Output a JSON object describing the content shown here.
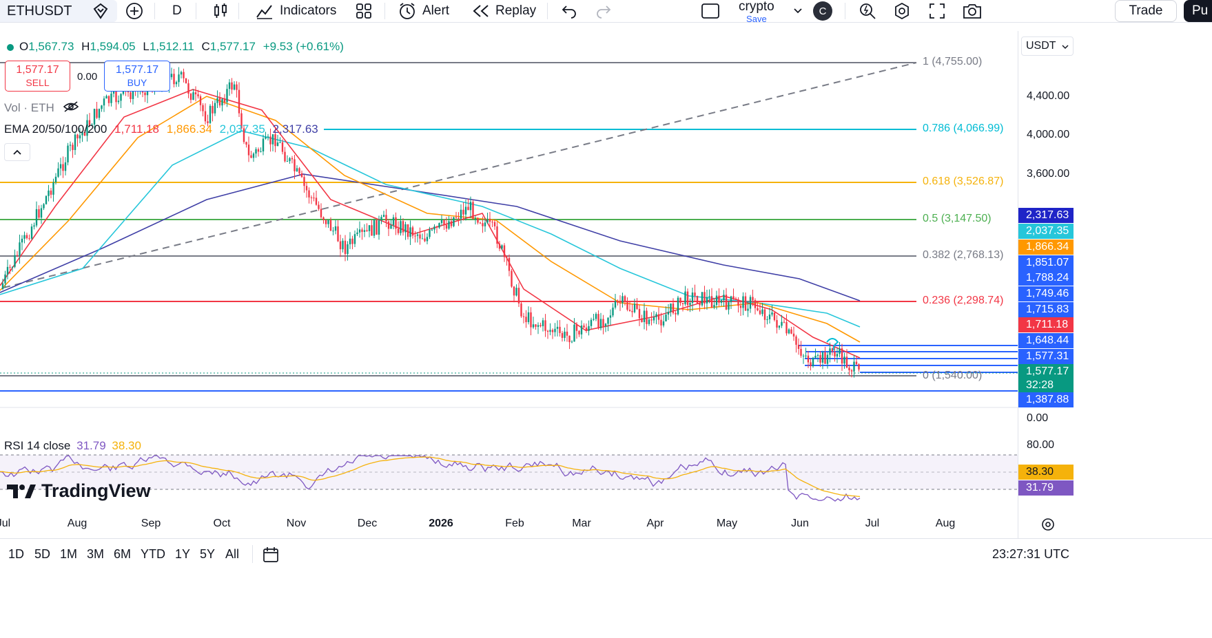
{
  "toolbar": {
    "symbol": "ETHUSDT",
    "interval": "D",
    "indicators_label": "Indicators",
    "alert_label": "Alert",
    "replay_label": "Replay",
    "layout_name": "crypto",
    "layout_save": "Save",
    "avatar_letter": "C",
    "trade_label": "Trade",
    "publish_label": "Pu"
  },
  "legend": {
    "o_key": "O",
    "o_val": "1,567.73",
    "h_key": "H",
    "h_val": "1,594.05",
    "l_key": "L",
    "l_val": "1,512.11",
    "c_key": "C",
    "c_val": "1,577.17",
    "change": "+9.53 (+0.61%)"
  },
  "trading": {
    "sell_price": "1,577.17",
    "sell_label": "SELL",
    "spread": "0.00",
    "buy_price": "1,577.17",
    "buy_label": "BUY"
  },
  "volume_label": "Vol · ETH",
  "ema": {
    "label": "EMA 20/50/100/200",
    "v20": "1,711.18",
    "v50": "1,866.34",
    "v100": "2,037.35",
    "v200": "2,317.63",
    "colors": [
      "#f23645",
      "#ff9800",
      "#26c6da",
      "#3f3fa6"
    ]
  },
  "rsi": {
    "label": "RSI 14 close",
    "value": "31.79",
    "ma": "38.30"
  },
  "fib_levels": [
    {
      "ratio": "1",
      "label": "1 (4,755.00)",
      "color": "#787b86"
    },
    {
      "ratio": "0.786",
      "label": "0.786 (4,066.99)",
      "color": "#00bcd4"
    },
    {
      "ratio": "0.618",
      "label": "0.618 (3,526.87)",
      "color": "#f5b20b"
    },
    {
      "ratio": "0.5",
      "label": "0.5 (3,147.50)",
      "color": "#4caf50"
    },
    {
      "ratio": "0.382",
      "label": "0.382 (2,768.13)",
      "color": "#787b86"
    },
    {
      "ratio": "0.236",
      "label": "0.236 (2,298.74)",
      "color": "#f23645"
    },
    {
      "ratio": "0",
      "label": "0 (1,540.00)",
      "color": "#787b86"
    }
  ],
  "price_scale": {
    "currency": "USDT",
    "ticks": [
      "4,400.00",
      "4,000.00",
      "3,600.00",
      "0.00",
      "80.00"
    ],
    "tags": [
      {
        "text": "2,317.63",
        "color": "#1f24c7"
      },
      {
        "text": "2,037.35",
        "color": "#26c6da"
      },
      {
        "text": "1,866.34",
        "color": "#ff9800"
      },
      {
        "text": "1,851.07",
        "color": "#2962ff"
      },
      {
        "text": "1,788.24",
        "color": "#2962ff"
      },
      {
        "text": "1,749.46",
        "color": "#2962ff"
      },
      {
        "text": "1,715.83",
        "color": "#2962ff"
      },
      {
        "text": "1,711.18",
        "color": "#f23645"
      },
      {
        "text": "1,648.44",
        "color": "#2962ff"
      },
      {
        "text": "1,577.31",
        "color": "#2962ff"
      },
      {
        "text": "1,577.17",
        "color": "#089981"
      },
      {
        "text": "32:28",
        "color": "#089981"
      },
      {
        "text": "1,387.88",
        "color": "#2962ff"
      },
      {
        "text": "38.30",
        "color": "#f5b20b"
      },
      {
        "text": "31.79",
        "color": "#7e57c2"
      }
    ]
  },
  "time_axis": [
    "Jul",
    "Aug",
    "Sep",
    "Oct",
    "Nov",
    "Dec",
    "2026",
    "Feb",
    "Mar",
    "Apr",
    "May",
    "Jun",
    "Jul",
    "Aug"
  ],
  "ranges": [
    "1D",
    "5D",
    "1M",
    "3M",
    "6M",
    "YTD",
    "1Y",
    "5Y",
    "All"
  ],
  "clock": "23:27:31 UTC",
  "brand": "TradingView"
}
